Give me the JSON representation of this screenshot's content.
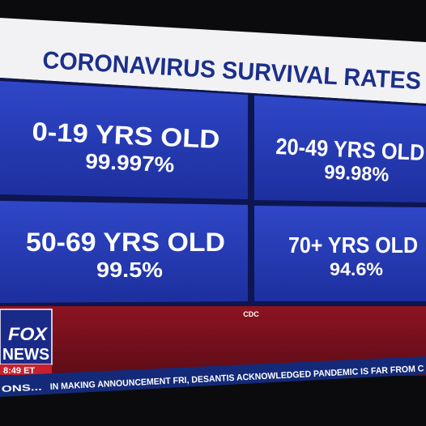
{
  "title": "CORONAVIRUS SURVIVAL RATES",
  "cells": [
    {
      "label": "0-19 YRS OLD",
      "value": "99.997%"
    },
    {
      "label": "20-49 YRS OLD",
      "value": "99.98%"
    },
    {
      "label": "50-69 YRS OLD",
      "value": "99.5%"
    },
    {
      "label": "70+ YRS OLD",
      "value": "94.6%"
    }
  ],
  "source": "CDC",
  "logo": {
    "line1": "FOX",
    "line2": "NEWS"
  },
  "time": "8:49 ET",
  "ticker": {
    "prefix": "ONS...",
    "text": "IN MAKING ANNOUNCEMENT FRI, DESANTIS ACKNOWLEDGED PANDEMIC IS FAR FROM C"
  }
}
